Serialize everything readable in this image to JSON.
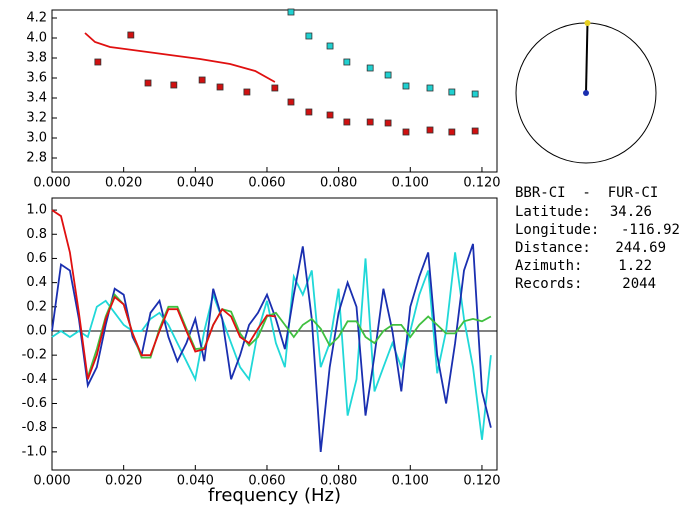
{
  "chart_data": [
    {
      "type": "scatter",
      "xlim": [
        0,
        0.1242
      ],
      "ylim": [
        2.66,
        4.28
      ],
      "xticks": [
        {
          "value": 0,
          "label": "0.000"
        },
        {
          "value": 0.02,
          "label": "0.020"
        },
        {
          "value": 0.04,
          "label": "0.040"
        },
        {
          "value": 0.06,
          "label": "0.060"
        },
        {
          "value": 0.08,
          "label": "0.080"
        },
        {
          "value": 0.1,
          "label": "0.100"
        },
        {
          "value": 0.12,
          "label": "0.120"
        }
      ],
      "yticks": [
        2.8,
        {
          "value": 3,
          "label": "3.0"
        },
        3.2,
        3.4,
        3.6,
        3.8,
        {
          "value": 4,
          "label": "4.0"
        },
        4.2
      ],
      "series": [
        {
          "type": "scatter",
          "color": "#d01010",
          "x": [
            0.0128,
            0.022,
            0.0268,
            0.034,
            0.0419,
            0.0469,
            0.0544,
            0.0622,
            0.0667,
            0.0717,
            0.0776,
            0.0823,
            0.0888,
            0.0938,
            0.0988,
            0.1055,
            0.1116,
            0.1181
          ],
          "values": [
            3.76,
            4.03,
            3.55,
            3.53,
            3.58,
            3.51,
            3.46,
            3.5,
            3.36,
            3.26,
            3.23,
            3.16,
            3.16,
            3.15,
            3.06,
            3.08,
            3.06,
            3.07
          ]
        },
        {
          "type": "scatter",
          "color": "#20d0d0",
          "x": [
            0.0667,
            0.0717,
            0.0776,
            0.0823,
            0.0888,
            0.0938,
            0.0988,
            0.1055,
            0.1116,
            0.1181
          ],
          "values": [
            4.26,
            4.02,
            3.92,
            3.76,
            3.7,
            3.63,
            3.52,
            3.5,
            3.46,
            3.44
          ]
        },
        {
          "type": "line",
          "color": "#e01010",
          "x": [
            0.0092,
            0.012,
            0.0162,
            0.0246,
            0.0329,
            0.0413,
            0.0497,
            0.0567,
            0.0622
          ],
          "values": [
            4.05,
            3.96,
            3.91,
            3.87,
            3.83,
            3.79,
            3.74,
            3.67,
            3.56
          ]
        }
      ]
    },
    {
      "type": "line",
      "x_label": "frequency (Hz)",
      "xlim": [
        0,
        0.1242
      ],
      "ylim": [
        -1.15,
        1.1
      ],
      "xticks": [
        {
          "value": 0,
          "label": "0.000"
        },
        {
          "value": 0.02,
          "label": "0.020"
        },
        {
          "value": 0.04,
          "label": "0.040"
        },
        {
          "value": 0.06,
          "label": "0.060"
        },
        {
          "value": 0.08,
          "label": "0.080"
        },
        {
          "value": 0.1,
          "label": "0.100"
        },
        {
          "value": 0.12,
          "label": "0.120"
        }
      ],
      "yticks": [
        {
          "value": -1,
          "label": "-1.0"
        },
        -0.8,
        -0.6,
        -0.4,
        -0.2,
        {
          "value": 0,
          "label": "0.0"
        },
        0.2,
        0.4,
        0.6,
        0.8,
        {
          "value": 1,
          "label": "1.0"
        }
      ],
      "hline": 0,
      "x": [
        0,
        0.0025,
        0.005,
        0.0075,
        0.01,
        0.0125,
        0.015,
        0.0175,
        0.02,
        0.0225,
        0.025,
        0.0275,
        0.03,
        0.0325,
        0.035,
        0.0375,
        0.04,
        0.0425,
        0.045,
        0.0475,
        0.05,
        0.0525,
        0.055,
        0.0575,
        0.06,
        0.0625,
        0.065,
        0.0675,
        0.07,
        0.0725,
        0.075,
        0.0775,
        0.08,
        0.0825,
        0.085,
        0.0875,
        0.09,
        0.0925,
        0.095,
        0.0975,
        0.1,
        0.1025,
        0.105,
        0.1075,
        0.11,
        0.1125,
        0.115,
        0.1175,
        0.12,
        0.1225
      ],
      "series": [
        {
          "color": "#20d8d8",
          "values": [
            -0.05,
            0,
            -0.05,
            0,
            -0.05,
            0.2,
            0.25,
            0.15,
            0.05,
            0,
            0,
            0.1,
            0.15,
            0.05,
            -0.1,
            -0.25,
            -0.4,
            0,
            0.3,
            0.1,
            -0.1,
            -0.3,
            -0.4,
            0,
            0.25,
            -0.1,
            -0.3,
            0.45,
            0.3,
            0.5,
            -0.3,
            -0.1,
            0.35,
            -0.7,
            -0.4,
            0.6,
            -0.5,
            -0.3,
            -0.1,
            -0.3,
            0,
            0.3,
            0.5,
            -0.35,
            0,
            0.65,
            0.1,
            -0.3,
            -0.9,
            -0.2
          ]
        },
        {
          "color": "#1a2fb0",
          "values": [
            0,
            0.55,
            0.5,
            0.1,
            -0.45,
            -0.3,
            0.05,
            0.35,
            0.3,
            -0.05,
            -0.2,
            0.15,
            0.25,
            -0.05,
            -0.25,
            -0.1,
            0.1,
            -0.25,
            0.35,
            0.1,
            -0.4,
            -0.2,
            0.05,
            0.15,
            0.3,
            0.1,
            -0.15,
            0.3,
            0.7,
            0.1,
            -1,
            -0.3,
            0.15,
            0.4,
            0.2,
            -0.7,
            -0.2,
            0.35,
            0,
            -0.5,
            0.2,
            0.45,
            0.65,
            -0.2,
            -0.6,
            -0.1,
            0.5,
            0.72,
            -0.5,
            -0.8
          ]
        },
        {
          "color": "#40c040",
          "values": [
            null,
            null,
            null,
            null,
            -0.38,
            -0.15,
            0.12,
            0.3,
            0.22,
            -0.02,
            -0.22,
            -0.22,
            0.02,
            0.2,
            0.2,
            0.02,
            -0.15,
            -0.14,
            0.05,
            0.18,
            0.16,
            -0.02,
            -0.12,
            -0.05,
            0.12,
            0.15,
            0.05,
            -0.05,
            0.05,
            0.1,
            0.02,
            -0.12,
            -0.05,
            0.08,
            0.08,
            -0.05,
            -0.1,
            0,
            0.05,
            0.05,
            -0.05,
            0.05,
            0.12,
            0.05,
            -0.02,
            -0.02,
            0.08,
            0.1,
            0.08,
            0.12
          ]
        },
        {
          "color": "#e01010",
          "values": [
            1,
            0.95,
            0.65,
            0.15,
            -0.4,
            -0.2,
            0.1,
            0.28,
            0.22,
            -0.02,
            -0.2,
            -0.2,
            0,
            0.18,
            0.18,
            0,
            -0.17,
            -0.15,
            0.05,
            0.18,
            0.12,
            -0.05,
            -0.1,
            0.02,
            0.13,
            0.12,
            null,
            null,
            null,
            null,
            null,
            null,
            null,
            null,
            null,
            null,
            null,
            null,
            null,
            null,
            null,
            null,
            null,
            null,
            null,
            null,
            null,
            null,
            null,
            null
          ]
        }
      ]
    }
  ],
  "info": {
    "title": "BBR-CI  -  FUR-CI",
    "rows": [
      {
        "label": "Latitude:",
        "value": 34.26
      },
      {
        "label": "Longitude:",
        "value": -116.92
      },
      {
        "label": "Distance:",
        "value": 244.69
      },
      {
        "label": "Azimuth:",
        "value": 1.22
      },
      {
        "label": "Records:",
        "value": 2044
      }
    ]
  }
}
